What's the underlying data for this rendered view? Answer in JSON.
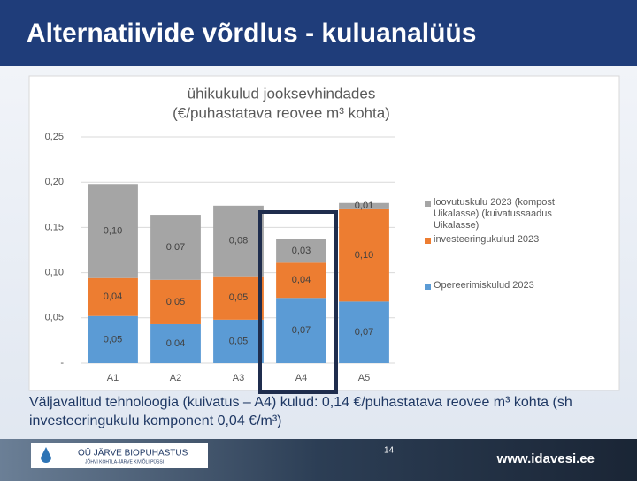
{
  "slide": {
    "title": "Alternatiivide võrdlus - kuluanalüüs",
    "note": "Väljavalitud tehnoloogia (kuivatus – A4) kulud: 0,14 €/puhastatava reovee m³ kohta (sh investeeringukulu komponent 0,04 €/m³)",
    "logo_name": "OÜ JÄRVE BIOPUHASTUS",
    "logo_sub": "JÕHVI KOHTLA-JÄRVE KIVIÕLI PÜSSI",
    "page_number": "14",
    "website": "www.idavesi.ee"
  },
  "chart_data": {
    "type": "stacked_bar",
    "title": "ühikukulud jooksevhindades",
    "subtitle": "(€/puhastatava reovee m³ kohta)",
    "categories": [
      "A1",
      "A2",
      "A3",
      "A4",
      "A5"
    ],
    "series": [
      {
        "name": "Opereerimiskulud 2023",
        "color": "#5b9bd5",
        "values": [
          0.052,
          0.043,
          0.048,
          0.072,
          0.068
        ],
        "value_labels": [
          "0,05",
          "0,04",
          "0,05",
          "0,07",
          "0,07"
        ]
      },
      {
        "name": "investeeringukulud 2023",
        "color": "#ed7d31",
        "values": [
          0.042,
          0.049,
          0.048,
          0.039,
          0.102
        ],
        "value_labels": [
          "0,04",
          "0,05",
          "0,05",
          "0,04",
          "0,10"
        ]
      },
      {
        "name": "loovutuskulu 2023 (kompost Uikalasse) (kuivatussaadus Uikalasse)",
        "color": "#a5a5a5",
        "values": [
          0.104,
          0.072,
          0.078,
          0.026,
          0.007
        ],
        "value_labels": [
          "0,10",
          "0,07",
          "0,08",
          "0,03",
          "0,01"
        ]
      }
    ],
    "ylim": [
      0,
      0.25
    ],
    "yticks": [
      {
        "value": 0,
        "label": "-"
      },
      {
        "value": 0.05,
        "label": "0,05"
      },
      {
        "value": 0.1,
        "label": "0,10"
      },
      {
        "value": 0.15,
        "label": "0,15"
      },
      {
        "value": 0.2,
        "label": "0,20"
      },
      {
        "value": 0.25,
        "label": "0,25"
      }
    ],
    "grid": true,
    "legend": "right"
  }
}
